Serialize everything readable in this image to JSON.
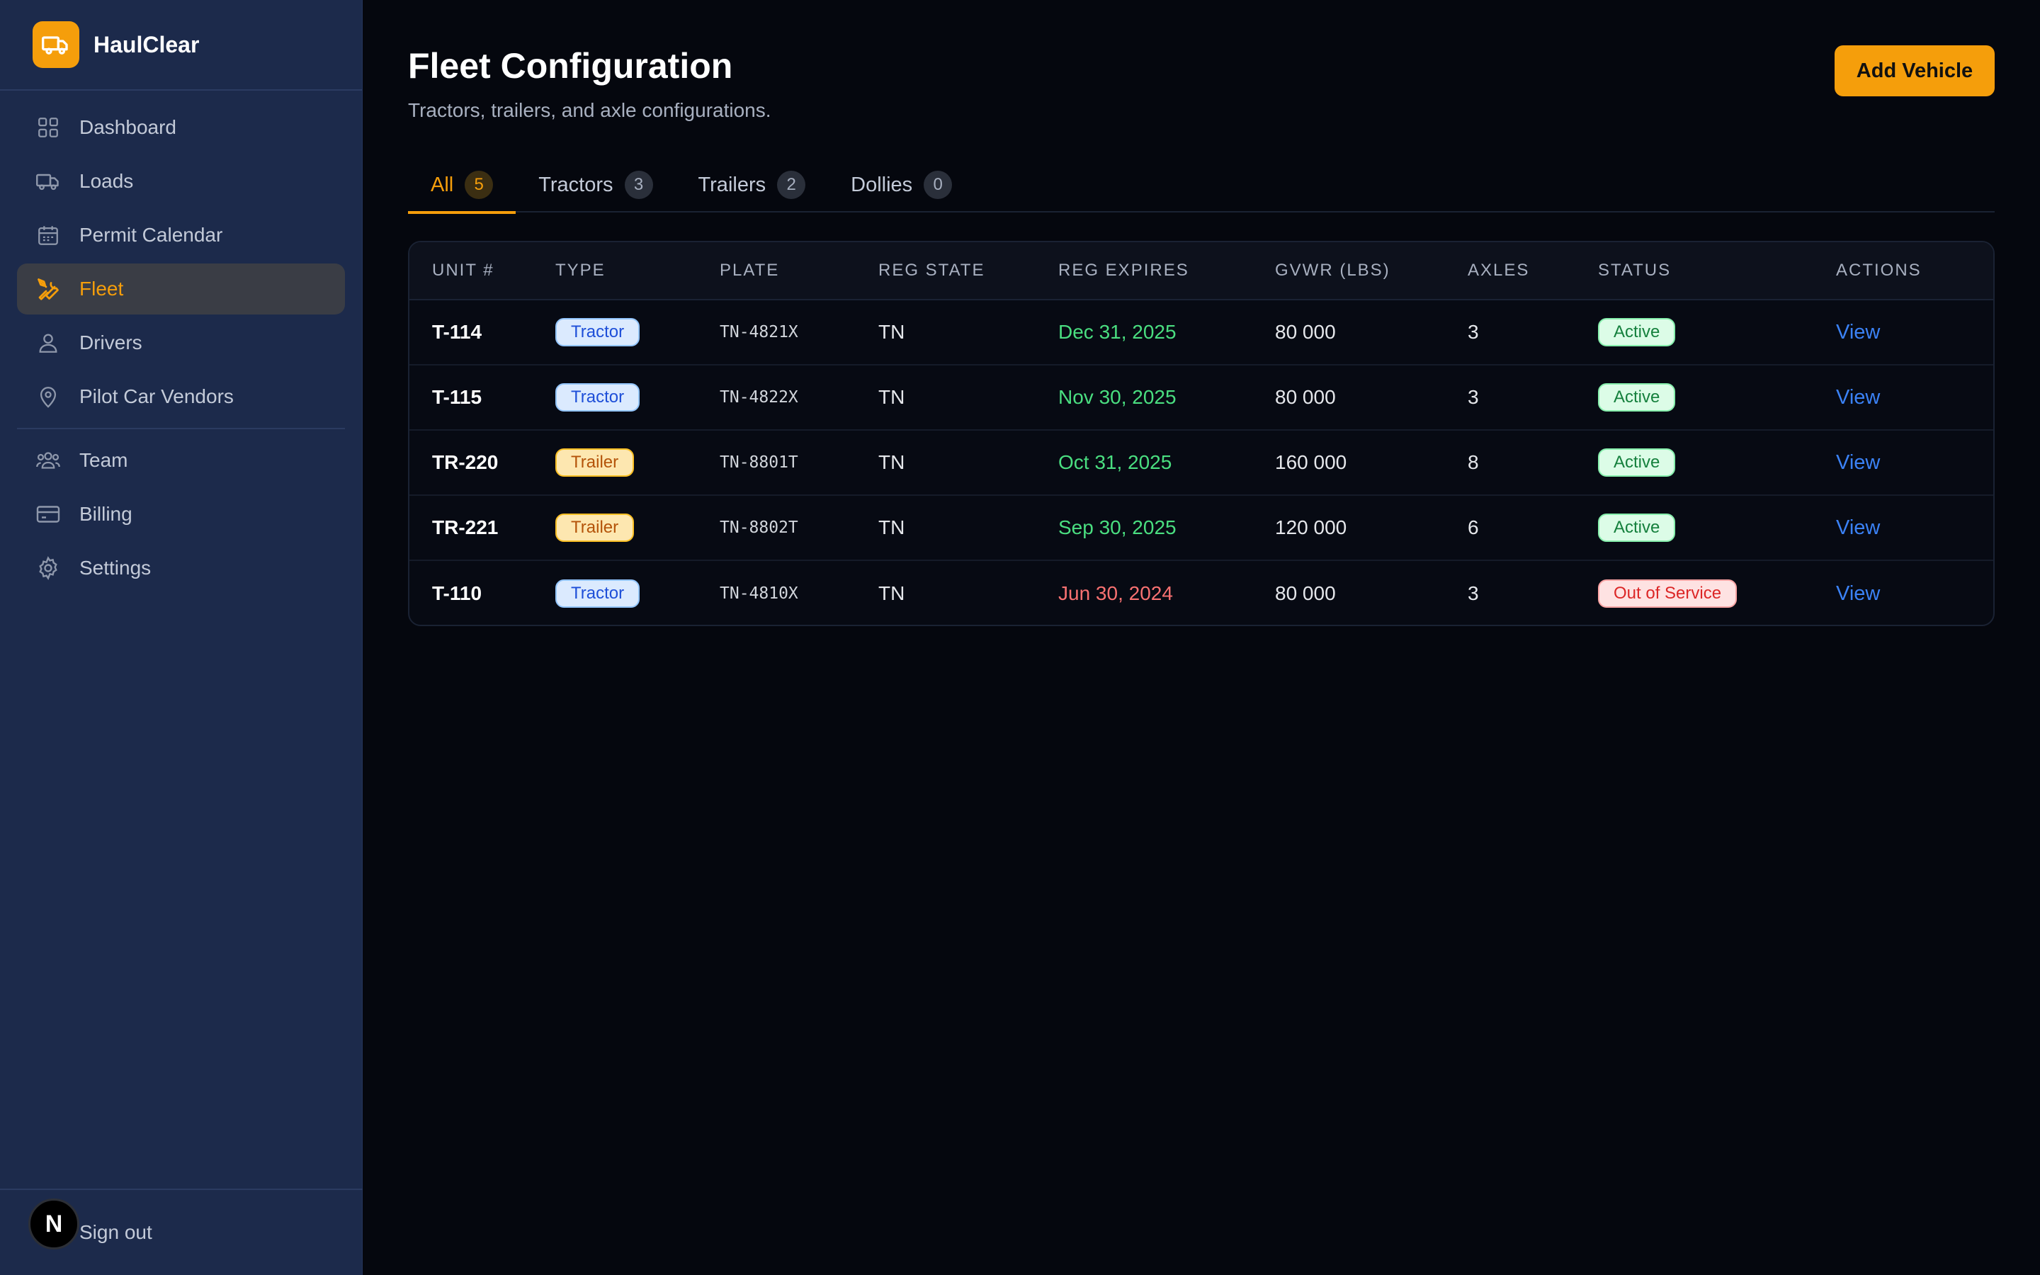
{
  "brand": {
    "name": "HaulClear",
    "logo_icon": "truck-icon",
    "accent": "#f59e0b"
  },
  "sidebar": {
    "items": [
      {
        "label": "Dashboard",
        "icon": "grid-icon"
      },
      {
        "label": "Loads",
        "icon": "truck-icon"
      },
      {
        "label": "Permit Calendar",
        "icon": "calendar-icon"
      },
      {
        "label": "Fleet",
        "icon": "tools-icon",
        "active": true
      },
      {
        "label": "Drivers",
        "icon": "user-icon"
      },
      {
        "label": "Pilot Car Vendors",
        "icon": "map-pin-icon"
      }
    ],
    "secondary_items": [
      {
        "label": "Team",
        "icon": "users-icon"
      },
      {
        "label": "Billing",
        "icon": "credit-card-icon"
      },
      {
        "label": "Settings",
        "icon": "gear-icon"
      }
    ],
    "footer": {
      "signout_label": "Sign out",
      "avatar_letter": "N"
    }
  },
  "header": {
    "title": "Fleet Configuration",
    "subtitle": "Tractors, trailers, and axle configurations.",
    "add_button_label": "Add Vehicle"
  },
  "tabs": [
    {
      "label": "All",
      "count": "5",
      "active": true
    },
    {
      "label": "Tractors",
      "count": "3"
    },
    {
      "label": "Trailers",
      "count": "2"
    },
    {
      "label": "Dollies",
      "count": "0"
    }
  ],
  "table": {
    "columns": [
      "UNIT #",
      "TYPE",
      "PLATE",
      "REG STATE",
      "REG EXPIRES",
      "GVWR (LBS)",
      "AXLES",
      "STATUS",
      "ACTIONS"
    ],
    "rows": [
      {
        "unit": "T-114",
        "type": "Tractor",
        "plate": "TN-4821X",
        "state": "TN",
        "expires": "Dec 31, 2025",
        "expired": false,
        "gvwr": "80 000",
        "axles": "3",
        "status": "Active",
        "action": "View"
      },
      {
        "unit": "T-115",
        "type": "Tractor",
        "plate": "TN-4822X",
        "state": "TN",
        "expires": "Nov 30, 2025",
        "expired": false,
        "gvwr": "80 000",
        "axles": "3",
        "status": "Active",
        "action": "View"
      },
      {
        "unit": "TR-220",
        "type": "Trailer",
        "plate": "TN-8801T",
        "state": "TN",
        "expires": "Oct 31, 2025",
        "expired": false,
        "gvwr": "160 000",
        "axles": "8",
        "status": "Active",
        "action": "View"
      },
      {
        "unit": "TR-221",
        "type": "Trailer",
        "plate": "TN-8802T",
        "state": "TN",
        "expires": "Sep 30, 2025",
        "expired": false,
        "gvwr": "120 000",
        "axles": "6",
        "status": "Active",
        "action": "View"
      },
      {
        "unit": "T-110",
        "type": "Tractor",
        "plate": "TN-4810X",
        "state": "TN",
        "expires": "Jun 30, 2024",
        "expired": true,
        "gvwr": "80 000",
        "axles": "3",
        "status": "Out of Service",
        "action": "View"
      }
    ]
  },
  "colors": {
    "sidebar_bg": "#1c2a4b",
    "page_bg": "#05070e",
    "accent": "#f59e0b",
    "valid_date": "#4ade80",
    "expired_date": "#f87171",
    "link": "#3b82f6"
  }
}
